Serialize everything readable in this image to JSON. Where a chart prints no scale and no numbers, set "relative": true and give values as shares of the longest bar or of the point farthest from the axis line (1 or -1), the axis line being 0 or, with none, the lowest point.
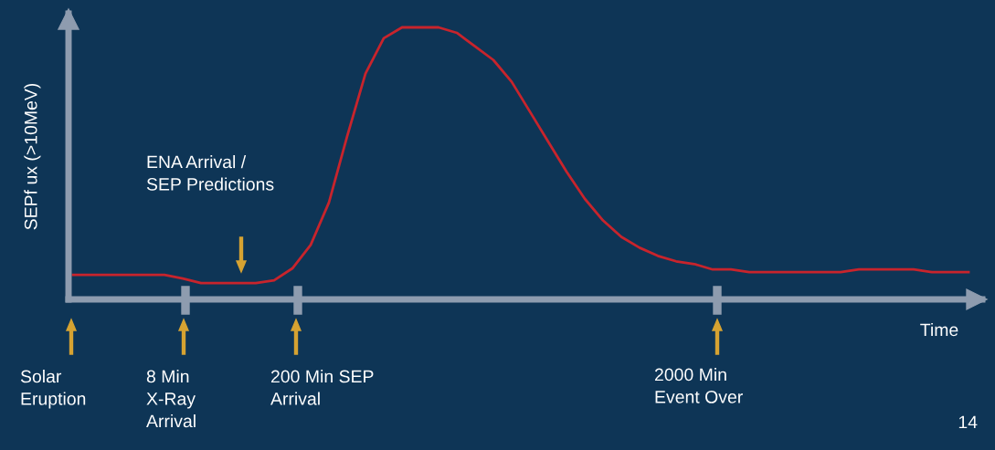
{
  "chart_data": {
    "type": "line",
    "relative": true,
    "ylabel": "SEPf ux (>10MeV)",
    "xlabel": "Time",
    "color": "#c8242c",
    "categories": [
      null,
      null,
      null,
      null,
      null,
      null,
      null,
      null,
      null,
      null,
      null,
      null,
      null,
      null,
      null,
      null,
      null,
      null,
      null,
      null,
      null,
      null,
      null,
      null,
      null,
      null,
      null,
      null,
      null,
      null,
      null,
      null,
      null,
      null,
      null,
      null,
      null,
      null,
      null,
      null,
      null,
      null,
      null,
      null,
      null,
      null,
      null,
      null,
      null,
      null
    ],
    "values": [
      0.09,
      0.09,
      0.09,
      0.09,
      0.09,
      0.09,
      0.077,
      0.06,
      0.06,
      0.06,
      0.06,
      0.07,
      0.114,
      0.2,
      0.356,
      0.6,
      0.83,
      0.96,
      1.0,
      1.0,
      1.0,
      0.98,
      0.93,
      0.88,
      0.8,
      0.69,
      0.58,
      0.47,
      0.37,
      0.29,
      0.23,
      0.19,
      0.16,
      0.14,
      0.13,
      0.11,
      0.11,
      0.1,
      0.1,
      0.1,
      0.1,
      0.1,
      0.1,
      0.11,
      0.11,
      0.11,
      0.11,
      0.1,
      0.1,
      0.1
    ],
    "annotations": [
      "ENA Arrival /\nSEP Predictions",
      "Solar\nEruption",
      "8 Min\nX-Ray\nArrival",
      "200 Min SEP\nArrival",
      "2000 Min\nEvent Over",
      "14"
    ]
  }
}
